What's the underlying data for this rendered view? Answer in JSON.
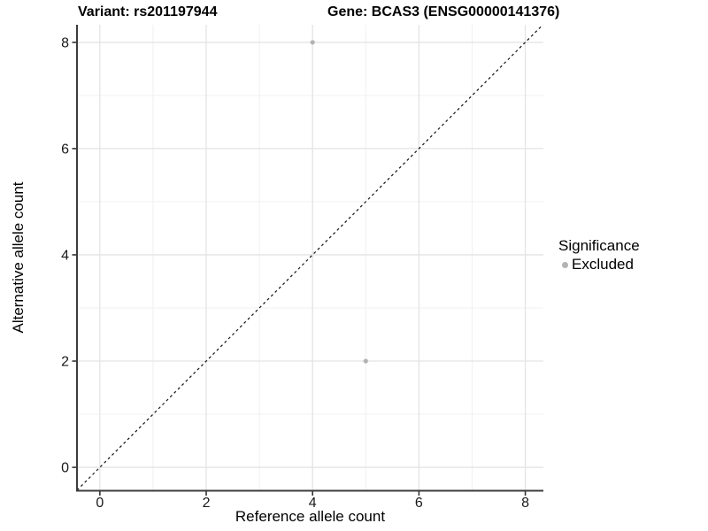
{
  "chart_data": {
    "type": "scatter",
    "title_left": "Variant: rs201197944",
    "title_right": "Gene: BCAS3 (ENSG00000141376)",
    "xlabel": "Reference allele count",
    "ylabel": "Alternative allele count",
    "xlim": [
      -0.43,
      8.34
    ],
    "ylim": [
      -0.44,
      8.33
    ],
    "x_ticks": [
      0,
      2,
      4,
      6,
      8
    ],
    "y_ticks": [
      0,
      2,
      4,
      6,
      8
    ],
    "x_minor_ticks": [
      1,
      3,
      5,
      7
    ],
    "y_minor_ticks": [
      1,
      3,
      5,
      7
    ],
    "grid": true,
    "points": [
      {
        "x": 4,
        "y": 8,
        "series": "Excluded"
      },
      {
        "x": 5,
        "y": 2,
        "series": "Excluded"
      }
    ],
    "abline": {
      "slope": 1,
      "intercept": 0,
      "style": "dashed"
    },
    "legend": {
      "title": "Significance",
      "position": "right",
      "items": [
        {
          "label": "Excluded",
          "color": "#b3b3b3"
        }
      ]
    },
    "colors": {
      "point": "#b3b3b3",
      "grid_major": "#e4e4e4",
      "grid_minor": "#f0f0f0",
      "axis_line": "#3c3c3c",
      "tick_mark": "#333333",
      "tick_label": "#1a1a1a",
      "abline": "#111111",
      "background": "#ffffff"
    }
  }
}
